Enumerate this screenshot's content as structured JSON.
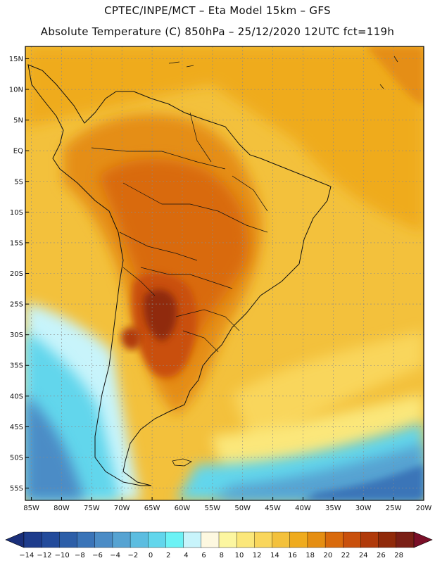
{
  "header": {
    "line1": "CPTEC/INPE/MCT –  Eta Model 15km – GFS",
    "line2": "Absolute Temperature (C) 850hPa – 25/12/2020 12UTC fct=119h"
  },
  "map": {
    "lat_labels": [
      "15N",
      "10N",
      "5N",
      "EQ",
      "5S",
      "10S",
      "15S",
      "20S",
      "25S",
      "30S",
      "35S",
      "40S",
      "45S",
      "50S",
      "55S"
    ],
    "lat_values": [
      15,
      10,
      5,
      0,
      -5,
      -10,
      -15,
      -20,
      -25,
      -30,
      -35,
      -40,
      -45,
      -50,
      -55
    ],
    "lon_labels": [
      "85W",
      "80W",
      "75W",
      "70W",
      "65W",
      "60W",
      "55W",
      "50W",
      "45W",
      "40W",
      "35W",
      "30W",
      "25W",
      "20W"
    ],
    "lon_values": [
      -85,
      -80,
      -75,
      -70,
      -65,
      -60,
      -55,
      -50,
      -45,
      -40,
      -35,
      -30,
      -25,
      -20
    ],
    "lat_range": [
      -57,
      17
    ],
    "lon_range": [
      -86,
      -20
    ]
  },
  "colorbar": {
    "labels": [
      "-14",
      "-12",
      "-10",
      "-8",
      "-6",
      "-4",
      "-2",
      "0",
      "2",
      "4",
      "6",
      "8",
      "10",
      "12",
      "14",
      "16",
      "18",
      "20",
      "22",
      "24",
      "26",
      "28"
    ],
    "colors": [
      "#1e3c8c",
      "#234b9b",
      "#2c5ea8",
      "#3a74b8",
      "#4b8cc6",
      "#56a3d2",
      "#5cbde0",
      "#62d6ec",
      "#6cf2f5",
      "#c8f4fb",
      "#fdf8e0",
      "#fcf6a0",
      "#fbe77a",
      "#f9d65c",
      "#f3c13c",
      "#efab1e",
      "#e58e12",
      "#d96a0c",
      "#c9500c",
      "#b03a0a",
      "#902a0a",
      "#7a1f16"
    ],
    "low_color": "#1a2f7a",
    "high_color": "#7a0f28"
  }
}
